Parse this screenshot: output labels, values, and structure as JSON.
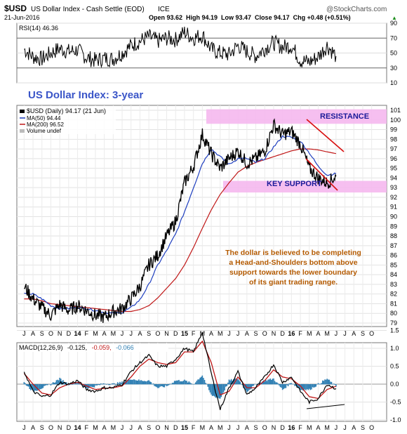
{
  "header": {
    "symbol": "$USD",
    "name": "US Dollar Index - Cash Settle (EOD)",
    "exchange": "ICE",
    "watermark": "@StockCharts.com",
    "date": "21-Jun-2016",
    "ohlc": "Open 93.62  High 94.19  Low 93.47  Close 94.17  Chg +0.48 (+0.51%)",
    "chg_arrow": "▲"
  },
  "rsi_panel": {
    "label": "RSI(14) 46.36",
    "ticks": [
      90,
      70,
      50,
      30,
      10
    ],
    "overbought": 70,
    "oversold": 30
  },
  "main_panel": {
    "title": "US Dollar Index: 3-year",
    "legend": {
      "price": "$USD (Daily) 94.17 (21 Jun)",
      "ma50": "MA(50) 94.44",
      "ma200": "MA(200) 96.52",
      "volume": "Volume undef"
    },
    "resistance_label": "RESISTANCE",
    "support_label": "KEY SUPPORT",
    "resistance_zone": [
      99.6,
      101.1
    ],
    "support_zone": [
      92.5,
      93.7
    ],
    "annotation": [
      "The dollar is believed to be completing",
      "a Head-and-Shoulders bottom above",
      "support towards the lower boundary",
      "of its giant trading range."
    ],
    "yticks": [
      79,
      80,
      81,
      82,
      83,
      84,
      85,
      86,
      87,
      88,
      89,
      90,
      91,
      92,
      93,
      94,
      95,
      96,
      97,
      98,
      99,
      100,
      101
    ]
  },
  "macd_panel": {
    "label_main": "MACD(12,26,9)",
    "label_v1": "-0.125,",
    "label_v2": "-0.059,",
    "label_v3": "-0.066",
    "ticks": [
      "1.5",
      "1.0",
      "0.5",
      "0.0",
      "-0.5",
      "-1.0"
    ]
  },
  "x_axis": {
    "labels": [
      "J",
      "A",
      "S",
      "O",
      "N",
      "D",
      "14",
      "F",
      "M",
      "A",
      "M",
      "J",
      "J",
      "A",
      "S",
      "O",
      "N",
      "D",
      "15",
      "F",
      "M",
      "A",
      "M",
      "J",
      "J",
      "A",
      "S",
      "O",
      "N",
      "D",
      "16",
      "F",
      "M",
      "A",
      "M",
      "J",
      "J",
      "A",
      "S",
      "O"
    ]
  },
  "colors": {
    "price": "#000000",
    "ma50": "#1f3fbf",
    "ma200": "#c01818",
    "zone": "#f5b8ee",
    "resistance_text": "#1a1a99",
    "annotation": "#b45a00",
    "title": "#3a55c8",
    "trendline": "#d81010",
    "macd_line": "#000000",
    "macd_signal": "#c01818",
    "histogram": "#2f7fb3",
    "label_gray": "#555555",
    "label_red": "#c01818",
    "label_blue": "#2f7fb3"
  },
  "chart_data": [
    {
      "type": "line",
      "title": "RSI(14) 46.36",
      "ylim": [
        10,
        90
      ],
      "x": [
        "2013-07",
        "2013-08",
        "2013-09",
        "2013-10",
        "2013-11",
        "2013-12",
        "2014-01",
        "2014-02",
        "2014-03",
        "2014-04",
        "2014-05",
        "2014-06",
        "2014-07",
        "2014-08",
        "2014-09",
        "2014-10",
        "2014-11",
        "2014-12",
        "2015-01",
        "2015-02",
        "2015-03",
        "2015-04",
        "2015-05",
        "2015-06",
        "2015-07",
        "2015-08",
        "2015-09",
        "2015-10",
        "2015-11",
        "2015-12",
        "2016-01",
        "2016-02",
        "2016-03",
        "2016-04",
        "2016-05",
        "2016-06"
      ],
      "series": [
        {
          "name": "RSI(14)",
          "values": [
            55,
            45,
            42,
            50,
            56,
            52,
            54,
            44,
            40,
            43,
            42,
            50,
            60,
            66,
            72,
            66,
            70,
            68,
            78,
            70,
            74,
            55,
            50,
            48,
            60,
            52,
            46,
            56,
            64,
            58,
            60,
            40,
            38,
            45,
            60,
            46
          ]
        }
      ]
    },
    {
      "type": "line",
      "title": "US Dollar Index: 3-year",
      "ylim": [
        79,
        101
      ],
      "x": [
        "2013-07",
        "2013-08",
        "2013-09",
        "2013-10",
        "2013-11",
        "2013-12",
        "2014-01",
        "2014-02",
        "2014-03",
        "2014-04",
        "2014-05",
        "2014-06",
        "2014-07",
        "2014-08",
        "2014-09",
        "2014-10",
        "2014-11",
        "2014-12",
        "2015-01",
        "2015-02",
        "2015-03",
        "2015-04",
        "2015-05",
        "2015-06",
        "2015-07",
        "2015-08",
        "2015-09",
        "2015-10",
        "2015-11",
        "2015-12",
        "2016-01",
        "2016-02",
        "2016-03",
        "2016-04",
        "2016-05",
        "2016-06"
      ],
      "series": [
        {
          "name": "$USD (Daily) 94.17 (21 Jun)",
          "values": [
            82.8,
            81.5,
            80.6,
            79.8,
            80.9,
            80.3,
            80.8,
            80.3,
            79.8,
            79.6,
            80.2,
            80.5,
            81.5,
            82.8,
            85.0,
            86.0,
            88.0,
            89.5,
            93.5,
            95.2,
            98.5,
            96.5,
            95.0,
            96.0,
            96.8,
            95.5,
            96.0,
            96.8,
            99.5,
            98.5,
            98.8,
            97.5,
            95.0,
            94.0,
            93.5,
            94.17
          ]
        },
        {
          "name": "MA(50) 94.44",
          "values": [
            82.0,
            82.0,
            81.5,
            80.8,
            80.5,
            80.5,
            80.6,
            80.5,
            80.3,
            80.1,
            80.0,
            80.1,
            80.6,
            81.4,
            83.0,
            85.0,
            86.5,
            88.2,
            90.5,
            93.0,
            95.5,
            97.0,
            96.2,
            95.4,
            96.0,
            96.0,
            95.6,
            96.0,
            97.2,
            98.3,
            98.2,
            97.8,
            96.6,
            95.2,
            94.3,
            94.44
          ]
        },
        {
          "name": "MA(200) 96.52",
          "values": [
            81.5,
            81.5,
            81.3,
            81.0,
            80.9,
            80.8,
            80.7,
            80.6,
            80.5,
            80.4,
            80.3,
            80.2,
            80.2,
            80.4,
            80.8,
            81.6,
            82.6,
            83.6,
            85.0,
            86.8,
            88.8,
            90.7,
            92.3,
            93.5,
            94.6,
            95.2,
            95.6,
            95.9,
            96.2,
            96.5,
            96.8,
            97.0,
            97.0,
            96.9,
            96.7,
            96.52
          ]
        }
      ]
    },
    {
      "type": "line",
      "title": "MACD(12,26,9) -0.125, -0.059, -0.066",
      "ylim": [
        -1.1,
        1.6
      ],
      "x": [
        "2013-07",
        "2013-08",
        "2013-09",
        "2013-10",
        "2013-11",
        "2013-12",
        "2014-01",
        "2014-02",
        "2014-03",
        "2014-04",
        "2014-05",
        "2014-06",
        "2014-07",
        "2014-08",
        "2014-09",
        "2014-10",
        "2014-11",
        "2014-12",
        "2015-01",
        "2015-02",
        "2015-03",
        "2015-04",
        "2015-05",
        "2015-06",
        "2015-07",
        "2015-08",
        "2015-09",
        "2015-10",
        "2015-11",
        "2015-12",
        "2016-01",
        "2016-02",
        "2016-03",
        "2016-04",
        "2016-05",
        "2016-06"
      ],
      "series": [
        {
          "name": "MACD",
          "values": [
            0.35,
            -0.2,
            -0.35,
            -0.3,
            0.05,
            0.0,
            0.1,
            -0.15,
            -0.2,
            -0.1,
            -0.1,
            0.0,
            0.35,
            0.6,
            0.8,
            0.5,
            0.5,
            0.7,
            1.0,
            0.9,
            1.45,
            0.3,
            -0.7,
            -0.1,
            0.35,
            -0.3,
            -0.1,
            0.2,
            0.55,
            0.05,
            0.2,
            -0.2,
            -0.5,
            -0.4,
            0.0,
            -0.125
          ]
        },
        {
          "name": "Signal",
          "values": [
            0.3,
            0.0,
            -0.25,
            -0.3,
            -0.1,
            0.0,
            0.05,
            -0.05,
            -0.15,
            -0.12,
            -0.1,
            -0.05,
            0.2,
            0.5,
            0.7,
            0.6,
            0.55,
            0.6,
            0.9,
            0.9,
            1.2,
            0.6,
            -0.3,
            -0.2,
            0.2,
            -0.1,
            -0.1,
            0.1,
            0.4,
            0.2,
            0.15,
            -0.05,
            -0.35,
            -0.4,
            -0.15,
            -0.059
          ]
        },
        {
          "name": "Histogram",
          "values": [
            0.05,
            -0.2,
            -0.1,
            0.0,
            0.15,
            0.0,
            0.05,
            -0.1,
            -0.05,
            0.02,
            0.0,
            0.05,
            0.15,
            0.1,
            0.1,
            -0.1,
            -0.05,
            0.1,
            0.1,
            0.0,
            0.25,
            -0.3,
            -0.4,
            0.1,
            0.15,
            -0.2,
            0.0,
            0.1,
            0.15,
            -0.15,
            0.05,
            -0.15,
            -0.15,
            0.0,
            0.15,
            -0.066
          ]
        }
      ]
    }
  ]
}
